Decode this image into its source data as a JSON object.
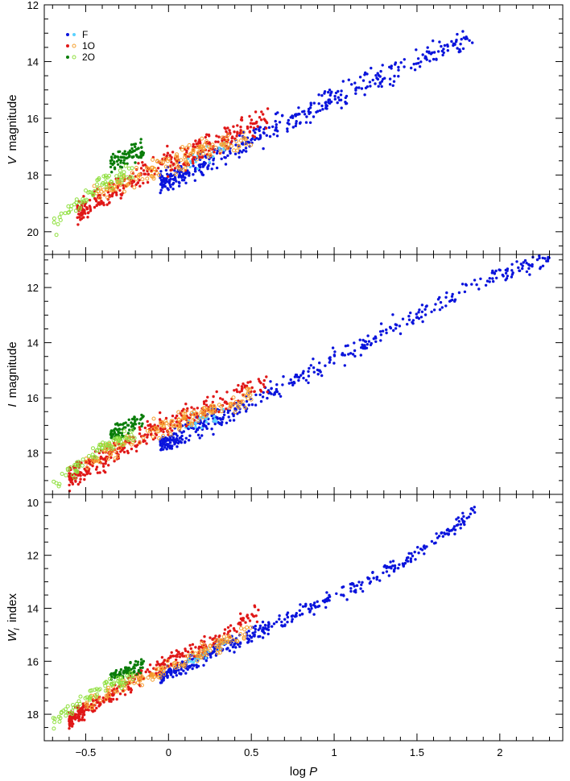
{
  "chart_data": [
    {
      "type": "scatter",
      "panel": "top",
      "ylabel_italic": "V",
      "ylabel_rest": "magnitude",
      "xlim": [
        -0.75,
        2.38
      ],
      "ylim": [
        12,
        20.8
      ],
      "y_inverted": true,
      "yticks": [
        12,
        14,
        16,
        18,
        20
      ],
      "show_x_tick_labels": false,
      "legend": {
        "placement": "top-left",
        "entries": [
          {
            "label": "F",
            "series": "F"
          },
          {
            "label": "1O",
            "series": "1O"
          },
          {
            "label": "2O",
            "series": "2O"
          }
        ]
      },
      "series": [
        {
          "name": "F",
          "color": "#0a14dc",
          "marker": "filled",
          "anchors": [
            [
              -0.05,
              18.3
            ],
            [
              0.5,
              16.8
            ],
            [
              1.0,
              15.3
            ],
            [
              1.5,
              14.0
            ],
            [
              1.85,
              13.0
            ]
          ],
          "spread": 0.45,
          "count": 420
        },
        {
          "name": "F",
          "color": "#5ad2ff",
          "marker": "filled",
          "anchors": [
            [
              0.1,
              17.6
            ],
            [
              0.35,
              17.0
            ]
          ],
          "spread": 0.35,
          "count": 25
        },
        {
          "name": "1O",
          "color": "#e01818",
          "marker": "filled",
          "anchors": [
            [
              -0.55,
              19.3
            ],
            [
              0.0,
              17.5
            ],
            [
              0.3,
              16.8
            ],
            [
              0.6,
              16.0
            ]
          ],
          "spread": 0.5,
          "count": 330
        },
        {
          "name": "1O",
          "color": "#f5a030",
          "marker": "open",
          "anchors": [
            [
              -0.45,
              18.7
            ],
            [
              -0.1,
              17.8
            ],
            [
              0.2,
              17.2
            ],
            [
              0.5,
              16.6
            ]
          ],
          "spread": 0.4,
          "count": 140
        },
        {
          "name": "2O",
          "color": "#0a7d0a",
          "marker": "filled",
          "anchors": [
            [
              -0.35,
              17.6
            ],
            [
              -0.15,
              17.1
            ]
          ],
          "spread": 0.35,
          "count": 80
        },
        {
          "name": "2O",
          "color": "#90e040",
          "marker": "open",
          "anchors": [
            [
              -0.7,
              19.8
            ],
            [
              -0.4,
              18.3
            ],
            [
              -0.2,
              17.9
            ]
          ],
          "spread": 0.35,
          "count": 70
        }
      ]
    },
    {
      "type": "scatter",
      "panel": "middle",
      "ylabel_italic": "I",
      "ylabel_rest": "magnitude",
      "xlim": [
        -0.75,
        2.38
      ],
      "ylim": [
        10.8,
        19.5
      ],
      "y_inverted": true,
      "yticks": [
        12,
        14,
        16,
        18
      ],
      "show_x_tick_labels": false,
      "series": [
        {
          "name": "F",
          "color": "#0a14dc",
          "marker": "filled",
          "anchors": [
            [
              -0.05,
              17.7
            ],
            [
              0.5,
              16.2
            ],
            [
              1.0,
              14.6
            ],
            [
              1.5,
              13.0
            ],
            [
              2.0,
              11.5
            ],
            [
              2.3,
              11.0
            ]
          ],
          "spread": 0.4,
          "count": 420
        },
        {
          "name": "F",
          "color": "#5ad2ff",
          "marker": "filled",
          "anchors": [
            [
              0.1,
              17.0
            ],
            [
              0.35,
              16.5
            ]
          ],
          "spread": 0.35,
          "count": 25
        },
        {
          "name": "1O",
          "color": "#e01818",
          "marker": "filled",
          "anchors": [
            [
              -0.6,
              18.9
            ],
            [
              0.0,
              16.9
            ],
            [
              0.3,
              16.2
            ],
            [
              0.6,
              15.4
            ]
          ],
          "spread": 0.45,
          "count": 330
        },
        {
          "name": "1O",
          "color": "#f5a030",
          "marker": "open",
          "anchors": [
            [
              -0.5,
              18.3
            ],
            [
              -0.1,
              17.2
            ],
            [
              0.2,
              16.6
            ],
            [
              0.5,
              15.9
            ]
          ],
          "spread": 0.35,
          "count": 140
        },
        {
          "name": "2O",
          "color": "#0a7d0a",
          "marker": "filled",
          "anchors": [
            [
              -0.35,
              17.3
            ],
            [
              -0.15,
              16.8
            ]
          ],
          "spread": 0.3,
          "count": 80
        },
        {
          "name": "2O",
          "color": "#90e040",
          "marker": "open",
          "anchors": [
            [
              -0.7,
              19.2
            ],
            [
              -0.4,
              17.8
            ],
            [
              -0.2,
              17.4
            ]
          ],
          "spread": 0.3,
          "count": 70
        }
      ]
    },
    {
      "type": "scatter",
      "panel": "bottom",
      "ylabel_italic": "W",
      "ylabel_sub": "I",
      "ylabel_rest": "index",
      "xlabel_prefix": "log ",
      "xlabel_italic": "P",
      "xlim": [
        -0.75,
        2.38
      ],
      "ylim": [
        9.7,
        19.0
      ],
      "y_inverted": true,
      "yticks": [
        10,
        12,
        14,
        16,
        18
      ],
      "xticks": [
        -0.5,
        0,
        0.5,
        1,
        1.5,
        2
      ],
      "xtick_labels": [
        "−0.5",
        "0",
        "0.5",
        "1",
        "1.5",
        "2"
      ],
      "show_x_tick_labels": true,
      "series": [
        {
          "name": "F",
          "color": "#0a14dc",
          "marker": "filled",
          "anchors": [
            [
              -0.05,
              16.6
            ],
            [
              0.5,
              15.0
            ],
            [
              1.0,
              13.6
            ],
            [
              1.5,
              12.0
            ],
            [
              1.85,
              10.3
            ]
          ],
          "spread": 0.3,
          "count": 420
        },
        {
          "name": "F",
          "color": "#5ad2ff",
          "marker": "filled",
          "anchors": [
            [
              0.1,
              16.0
            ],
            [
              0.35,
              15.3
            ]
          ],
          "spread": 0.3,
          "count": 25
        },
        {
          "name": "1O",
          "color": "#e01818",
          "marker": "filled",
          "anchors": [
            [
              -0.6,
              18.2
            ],
            [
              0.0,
              16.0
            ],
            [
              0.3,
              15.1
            ],
            [
              0.55,
              14.2
            ]
          ],
          "spread": 0.35,
          "count": 330
        },
        {
          "name": "1O",
          "color": "#f5a030",
          "marker": "open",
          "anchors": [
            [
              -0.5,
              17.6
            ],
            [
              -0.1,
              16.5
            ],
            [
              0.2,
              15.7
            ],
            [
              0.5,
              14.8
            ]
          ],
          "spread": 0.3,
          "count": 140
        },
        {
          "name": "2O",
          "color": "#0a7d0a",
          "marker": "filled",
          "anchors": [
            [
              -0.35,
              16.6
            ],
            [
              -0.15,
              16.1
            ]
          ],
          "spread": 0.25,
          "count": 80
        },
        {
          "name": "2O",
          "color": "#90e040",
          "marker": "open",
          "anchors": [
            [
              -0.7,
              18.3
            ],
            [
              -0.4,
              17.0
            ],
            [
              -0.2,
              16.6
            ]
          ],
          "spread": 0.3,
          "count": 70
        }
      ]
    }
  ]
}
